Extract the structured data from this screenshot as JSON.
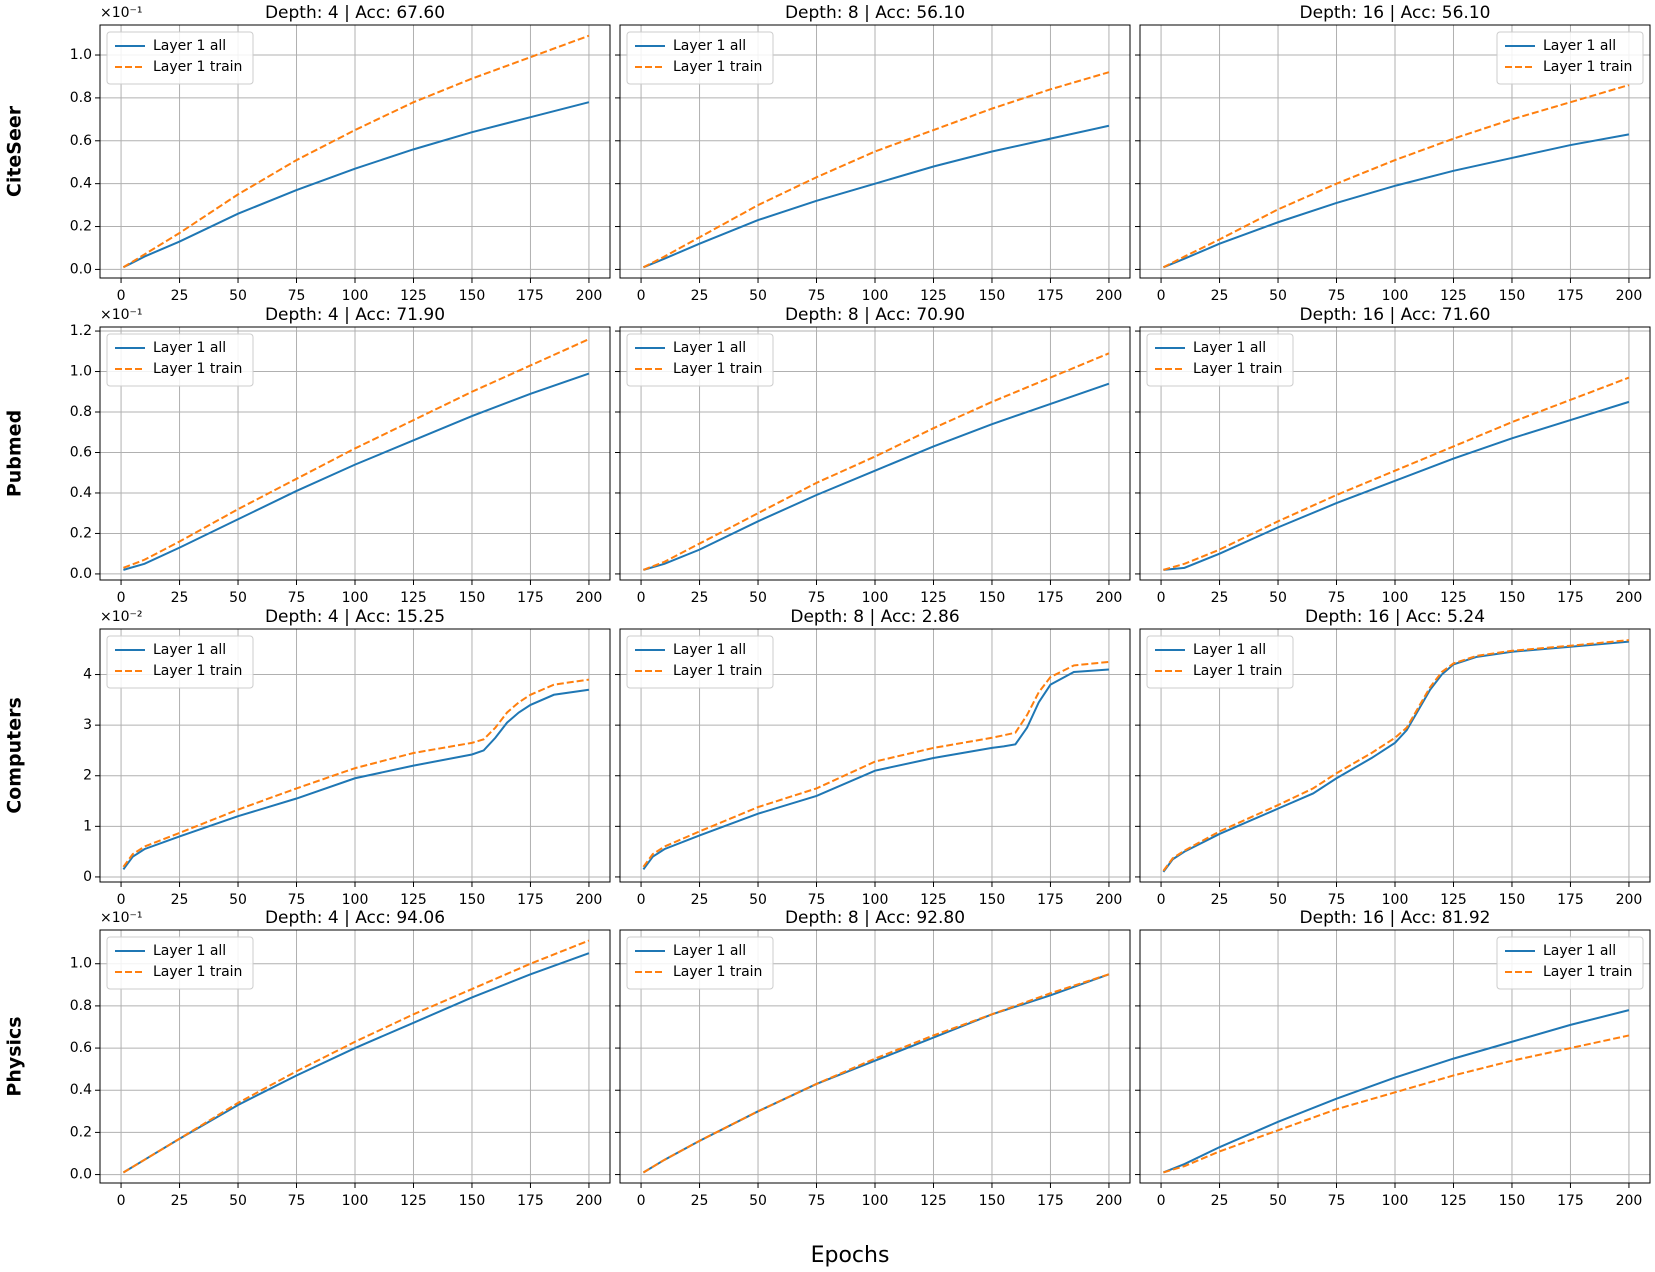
{
  "xlabel": "Epochs",
  "chart_data": [
    {
      "type": "line",
      "title": "Depth: 4 | Acc: 67.60",
      "ylabel": "CiteSeer",
      "y_offset_text": "×10⁻¹",
      "x": [
        1,
        10,
        25,
        50,
        75,
        100,
        125,
        150,
        175,
        200
      ],
      "series": [
        {
          "name": "Layer 1 all",
          "color": "#1f77b4",
          "linestyle": "solid",
          "values": [
            0.01,
            0.06,
            0.13,
            0.26,
            0.37,
            0.47,
            0.56,
            0.64,
            0.71,
            0.78
          ]
        },
        {
          "name": "Layer 1 train",
          "color": "#ff7f0e",
          "linestyle": "dashed",
          "values": [
            0.01,
            0.07,
            0.17,
            0.35,
            0.51,
            0.65,
            0.78,
            0.89,
            0.99,
            1.09
          ]
        }
      ],
      "xlim": [
        -9,
        209
      ],
      "xticks": [
        0,
        25,
        50,
        75,
        100,
        125,
        150,
        175,
        200
      ],
      "ylim": [
        -0.04,
        1.14
      ],
      "yticks": [
        {
          "value": 0,
          "label": "0.0"
        },
        0.2,
        0.4,
        0.6,
        0.8,
        {
          "value": 1,
          "label": "1.0"
        }
      ],
      "legend": "upper left",
      "grid": true
    },
    {
      "type": "line",
      "title": "Depth: 8 | Acc: 56.10",
      "x": [
        1,
        10,
        25,
        50,
        75,
        100,
        125,
        150,
        175,
        200
      ],
      "series": [
        {
          "name": "Layer 1 all",
          "color": "#1f77b4",
          "linestyle": "solid",
          "values": [
            0.01,
            0.05,
            0.12,
            0.23,
            0.32,
            0.4,
            0.48,
            0.55,
            0.61,
            0.67
          ]
        },
        {
          "name": "Layer 1 train",
          "color": "#ff7f0e",
          "linestyle": "dashed",
          "values": [
            0.01,
            0.06,
            0.15,
            0.3,
            0.43,
            0.55,
            0.65,
            0.75,
            0.84,
            0.92
          ]
        }
      ],
      "xlim": [
        -9,
        209
      ],
      "xticks": [
        0,
        25,
        50,
        75,
        100,
        125,
        150,
        175,
        200
      ],
      "legend": "upper left",
      "grid": true
    },
    {
      "type": "line",
      "title": "Depth: 16 | Acc: 56.10",
      "x": [
        1,
        10,
        25,
        50,
        75,
        100,
        125,
        150,
        175,
        200
      ],
      "series": [
        {
          "name": "Layer 1 all",
          "color": "#1f77b4",
          "linestyle": "solid",
          "values": [
            0.01,
            0.05,
            0.12,
            0.22,
            0.31,
            0.39,
            0.46,
            0.52,
            0.58,
            0.63
          ]
        },
        {
          "name": "Layer 1 train",
          "color": "#ff7f0e",
          "linestyle": "dashed",
          "values": [
            0.01,
            0.06,
            0.14,
            0.28,
            0.4,
            0.51,
            0.61,
            0.7,
            0.78,
            0.86
          ]
        }
      ],
      "xlim": [
        -9,
        209
      ],
      "xticks": [
        0,
        25,
        50,
        75,
        100,
        125,
        150,
        175,
        200
      ],
      "legend": "upper right",
      "grid": true
    },
    {
      "type": "line",
      "title": "Depth: 4 | Acc: 71.90",
      "ylabel": "Pubmed",
      "y_offset_text": "×10⁻¹",
      "x": [
        1,
        10,
        25,
        50,
        75,
        100,
        125,
        150,
        175,
        200
      ],
      "series": [
        {
          "name": "Layer 1 all",
          "color": "#1f77b4",
          "linestyle": "solid",
          "values": [
            0.02,
            0.05,
            0.13,
            0.27,
            0.41,
            0.54,
            0.66,
            0.78,
            0.89,
            0.99
          ]
        },
        {
          "name": "Layer 1 train",
          "color": "#ff7f0e",
          "linestyle": "dashed",
          "values": [
            0.03,
            0.07,
            0.16,
            0.32,
            0.47,
            0.62,
            0.76,
            0.9,
            1.03,
            1.16
          ]
        }
      ],
      "xlim": [
        -9,
        209
      ],
      "xticks": [
        0,
        25,
        50,
        75,
        100,
        125,
        150,
        175,
        200
      ],
      "ylim": [
        -0.03,
        1.22
      ],
      "yticks": [
        {
          "value": 0,
          "label": "0.0"
        },
        0.2,
        0.4,
        0.6,
        0.8,
        {
          "value": 1,
          "label": "1.0"
        },
        1.2
      ],
      "legend": "upper left",
      "grid": true
    },
    {
      "type": "line",
      "title": "Depth: 8 | Acc: 70.90",
      "x": [
        1,
        10,
        25,
        50,
        75,
        100,
        125,
        150,
        175,
        200
      ],
      "series": [
        {
          "name": "Layer 1 all",
          "color": "#1f77b4",
          "linestyle": "solid",
          "values": [
            0.02,
            0.05,
            0.12,
            0.26,
            0.39,
            0.51,
            0.63,
            0.74,
            0.84,
            0.94
          ]
        },
        {
          "name": "Layer 1 train",
          "color": "#ff7f0e",
          "linestyle": "dashed",
          "values": [
            0.02,
            0.06,
            0.15,
            0.3,
            0.45,
            0.58,
            0.72,
            0.85,
            0.97,
            1.09
          ]
        }
      ],
      "xlim": [
        -9,
        209
      ],
      "xticks": [
        0,
        25,
        50,
        75,
        100,
        125,
        150,
        175,
        200
      ],
      "legend": "upper left",
      "grid": true
    },
    {
      "type": "line",
      "title": "Depth: 16 | Acc: 71.60",
      "x": [
        1,
        10,
        25,
        50,
        75,
        100,
        125,
        150,
        175,
        200
      ],
      "series": [
        {
          "name": "Layer 1 all",
          "color": "#1f77b4",
          "linestyle": "solid",
          "values": [
            0.02,
            0.03,
            0.1,
            0.23,
            0.35,
            0.46,
            0.57,
            0.67,
            0.76,
            0.85
          ]
        },
        {
          "name": "Layer 1 train",
          "color": "#ff7f0e",
          "linestyle": "dashed",
          "values": [
            0.02,
            0.05,
            0.12,
            0.26,
            0.39,
            0.51,
            0.63,
            0.75,
            0.86,
            0.97
          ]
        }
      ],
      "xlim": [
        -9,
        209
      ],
      "xticks": [
        0,
        25,
        50,
        75,
        100,
        125,
        150,
        175,
        200
      ],
      "legend": "upper left",
      "grid": true
    },
    {
      "type": "line",
      "title": "Depth: 4 | Acc: 15.25",
      "ylabel": "Computers",
      "y_offset_text": "×10⁻²",
      "x": [
        1,
        5,
        10,
        25,
        50,
        75,
        100,
        125,
        150,
        155,
        160,
        165,
        170,
        175,
        185,
        200
      ],
      "series": [
        {
          "name": "Layer 1 all",
          "color": "#1f77b4",
          "linestyle": "solid",
          "values": [
            0.15,
            0.4,
            0.55,
            0.8,
            1.2,
            1.55,
            1.95,
            2.2,
            2.42,
            2.5,
            2.75,
            3.05,
            3.25,
            3.4,
            3.6,
            3.7
          ]
        },
        {
          "name": "Layer 1 train",
          "color": "#ff7f0e",
          "linestyle": "dashed",
          "values": [
            0.2,
            0.45,
            0.6,
            0.87,
            1.33,
            1.75,
            2.15,
            2.45,
            2.65,
            2.72,
            2.95,
            3.25,
            3.45,
            3.6,
            3.8,
            3.9
          ]
        }
      ],
      "xlim": [
        -9,
        209
      ],
      "xticks": [
        0,
        25,
        50,
        75,
        100,
        125,
        150,
        175,
        200
      ],
      "ylim": [
        -0.1,
        4.9
      ],
      "yticks": [
        0,
        1,
        2,
        3,
        4
      ],
      "legend": "upper left",
      "grid": true
    },
    {
      "type": "line",
      "title": "Depth: 8 | Acc: 2.86",
      "x": [
        1,
        5,
        10,
        25,
        50,
        75,
        100,
        125,
        150,
        155,
        160,
        165,
        170,
        175,
        185,
        200
      ],
      "series": [
        {
          "name": "Layer 1 all",
          "color": "#1f77b4",
          "linestyle": "solid",
          "values": [
            0.15,
            0.4,
            0.55,
            0.82,
            1.25,
            1.6,
            2.1,
            2.35,
            2.55,
            2.58,
            2.62,
            2.95,
            3.45,
            3.8,
            4.05,
            4.1
          ]
        },
        {
          "name": "Layer 1 train",
          "color": "#ff7f0e",
          "linestyle": "dashed",
          "values": [
            0.2,
            0.45,
            0.6,
            0.9,
            1.38,
            1.75,
            2.28,
            2.55,
            2.75,
            2.8,
            2.85,
            3.2,
            3.65,
            3.95,
            4.18,
            4.25
          ]
        }
      ],
      "xlim": [
        -9,
        209
      ],
      "xticks": [
        0,
        25,
        50,
        75,
        100,
        125,
        150,
        175,
        200
      ],
      "legend": "upper left",
      "grid": true
    },
    {
      "type": "line",
      "title": "Depth: 16 | Acc: 5.24",
      "x": [
        1,
        5,
        10,
        25,
        50,
        65,
        75,
        90,
        100,
        105,
        110,
        115,
        120,
        125,
        135,
        150,
        175,
        200
      ],
      "series": [
        {
          "name": "Layer 1 all",
          "color": "#1f77b4",
          "linestyle": "solid",
          "values": [
            0.1,
            0.35,
            0.5,
            0.85,
            1.35,
            1.65,
            1.95,
            2.35,
            2.65,
            2.9,
            3.3,
            3.7,
            4.0,
            4.2,
            4.35,
            4.45,
            4.55,
            4.65
          ]
        },
        {
          "name": "Layer 1 train",
          "color": "#ff7f0e",
          "linestyle": "dashed",
          "values": [
            0.12,
            0.37,
            0.52,
            0.9,
            1.42,
            1.75,
            2.05,
            2.45,
            2.75,
            2.95,
            3.35,
            3.75,
            4.05,
            4.22,
            4.37,
            4.47,
            4.57,
            4.68
          ]
        }
      ],
      "xlim": [
        -9,
        209
      ],
      "xticks": [
        0,
        25,
        50,
        75,
        100,
        125,
        150,
        175,
        200
      ],
      "legend": "upper left",
      "grid": true
    },
    {
      "type": "line",
      "title": "Depth: 4 | Acc: 94.06",
      "ylabel": "Physics",
      "y_offset_text": "×10⁻¹",
      "x": [
        1,
        10,
        25,
        50,
        75,
        100,
        125,
        150,
        175,
        200
      ],
      "series": [
        {
          "name": "Layer 1 all",
          "color": "#1f77b4",
          "linestyle": "solid",
          "values": [
            0.01,
            0.07,
            0.17,
            0.33,
            0.47,
            0.6,
            0.72,
            0.84,
            0.95,
            1.05
          ]
        },
        {
          "name": "Layer 1 train",
          "color": "#ff7f0e",
          "linestyle": "dashed",
          "values": [
            0.01,
            0.07,
            0.17,
            0.34,
            0.49,
            0.63,
            0.76,
            0.88,
            1.0,
            1.11
          ]
        }
      ],
      "xlim": [
        -9,
        209
      ],
      "xticks": [
        0,
        25,
        50,
        75,
        100,
        125,
        150,
        175,
        200
      ],
      "ylim": [
        -0.04,
        1.16
      ],
      "yticks": [
        {
          "value": 0,
          "label": "0.0"
        },
        0.2,
        0.4,
        0.6,
        0.8,
        {
          "value": 1,
          "label": "1.0"
        }
      ],
      "legend": "upper left",
      "grid": true
    },
    {
      "type": "line",
      "title": "Depth: 8 | Acc: 92.80",
      "x": [
        1,
        10,
        25,
        50,
        75,
        100,
        125,
        150,
        175,
        200
      ],
      "series": [
        {
          "name": "Layer 1 all",
          "color": "#1f77b4",
          "linestyle": "solid",
          "values": [
            0.01,
            0.07,
            0.16,
            0.3,
            0.43,
            0.54,
            0.65,
            0.76,
            0.85,
            0.95
          ]
        },
        {
          "name": "Layer 1 train",
          "color": "#ff7f0e",
          "linestyle": "dashed",
          "values": [
            0.01,
            0.07,
            0.16,
            0.3,
            0.43,
            0.55,
            0.66,
            0.76,
            0.86,
            0.95
          ]
        }
      ],
      "xlim": [
        -9,
        209
      ],
      "xticks": [
        0,
        25,
        50,
        75,
        100,
        125,
        150,
        175,
        200
      ],
      "legend": "upper left",
      "grid": true
    },
    {
      "type": "line",
      "title": "Depth: 16 | Acc: 81.92",
      "x": [
        1,
        10,
        25,
        50,
        75,
        100,
        125,
        150,
        175,
        200
      ],
      "series": [
        {
          "name": "Layer 1 all",
          "color": "#1f77b4",
          "linestyle": "solid",
          "values": [
            0.01,
            0.05,
            0.13,
            0.25,
            0.36,
            0.46,
            0.55,
            0.63,
            0.71,
            0.78
          ]
        },
        {
          "name": "Layer 1 train",
          "color": "#ff7f0e",
          "linestyle": "dashed",
          "values": [
            0.01,
            0.04,
            0.11,
            0.21,
            0.31,
            0.39,
            0.47,
            0.54,
            0.6,
            0.66
          ]
        }
      ],
      "xlim": [
        -9,
        209
      ],
      "xticks": [
        0,
        25,
        50,
        75,
        100,
        125,
        150,
        175,
        200
      ],
      "legend": "upper right",
      "grid": true
    }
  ]
}
